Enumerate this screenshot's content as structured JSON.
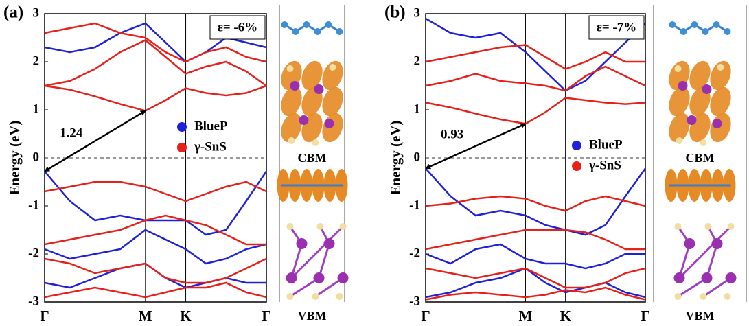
{
  "chart_data": [
    {
      "type": "line",
      "panel_label": "(a)",
      "annotation": "ε= -6%",
      "gap_label": "1.24",
      "ylabel": "Energy (eV)",
      "cbm_label": "CBM",
      "vbm_label": "VBM",
      "xlim": [
        0,
        2.2
      ],
      "ylim": [
        -3,
        3
      ],
      "yticks": [
        -3,
        -2,
        -1,
        0,
        1,
        2,
        3
      ],
      "xticks": [
        {
          "value": 0,
          "label": "Γ"
        },
        {
          "value": 1,
          "label": "M"
        },
        {
          "value": 1.4,
          "label": "K"
        },
        {
          "value": 2.2,
          "label": "Γ"
        }
      ],
      "fermi_level": 0,
      "gap_arrow": {
        "x": [
          0,
          1
        ],
        "y": [
          -0.28,
          0.98
        ]
      },
      "x": [
        0,
        0.25,
        0.5,
        0.75,
        1,
        1.2,
        1.4,
        1.6,
        1.8,
        2.0,
        2.2
      ],
      "series": [
        {
          "name": "BlueP",
          "color": "#2020d8",
          "bands": [
            [
              -0.28,
              -0.9,
              -1.3,
              -1.2,
              -1.3,
              -1.3,
              -1.3,
              -1.6,
              -1.5,
              -0.9,
              -0.28
            ],
            [
              2.3,
              2.2,
              2.3,
              2.6,
              2.8,
              2.4,
              2.0,
              2.2,
              2.5,
              2.4,
              2.3
            ],
            [
              -1.9,
              -2.1,
              -2.0,
              -1.9,
              -1.5,
              -1.7,
              -1.9,
              -2.2,
              -2.1,
              -1.9,
              -1.8
            ],
            [
              -2.6,
              -2.7,
              -2.5,
              -2.3,
              -2.2,
              -2.5,
              -2.7,
              -2.6,
              -2.5,
              -2.6,
              -2.6
            ]
          ]
        },
        {
          "name": "γ-SnS",
          "color": "#e8201a",
          "bands": [
            [
              1.5,
              1.42,
              1.28,
              1.12,
              0.98,
              1.2,
              1.45,
              1.35,
              1.3,
              1.35,
              1.5
            ],
            [
              1.5,
              1.6,
              1.85,
              2.2,
              2.45,
              2.1,
              1.75,
              1.9,
              2.0,
              1.8,
              1.5
            ],
            [
              2.6,
              2.7,
              2.8,
              2.6,
              2.5,
              2.2,
              2.0,
              2.2,
              2.3,
              2.1,
              2.0
            ],
            [
              -0.7,
              -0.6,
              -0.5,
              -0.5,
              -0.6,
              -0.75,
              -0.9,
              -0.75,
              -0.6,
              -0.5,
              -0.7
            ],
            [
              -1.8,
              -1.7,
              -1.6,
              -1.5,
              -1.3,
              -1.2,
              -1.3,
              -1.4,
              -1.6,
              -1.8,
              -1.8
            ],
            [
              -2.1,
              -2.2,
              -2.4,
              -2.3,
              -2.2,
              -2.5,
              -2.6,
              -2.6,
              -2.5,
              -2.3,
              -2.1
            ],
            [
              -2.9,
              -2.8,
              -2.7,
              -2.8,
              -2.9,
              -2.8,
              -2.7,
              -2.7,
              -2.6,
              -2.8,
              -2.9
            ]
          ]
        }
      ]
    },
    {
      "type": "line",
      "panel_label": "(b)",
      "annotation": "ε= -7%",
      "gap_label": "0.93",
      "ylabel": "Energy (eV)",
      "cbm_label": "CBM",
      "vbm_label": "VBM",
      "xlim": [
        0,
        2.2
      ],
      "ylim": [
        -3,
        3
      ],
      "yticks": [
        -3,
        -2,
        -1,
        0,
        1,
        2,
        3
      ],
      "xticks": [
        {
          "value": 0,
          "label": "Γ"
        },
        {
          "value": 1,
          "label": "M"
        },
        {
          "value": 1.4,
          "label": "K"
        },
        {
          "value": 2.2,
          "label": "Γ"
        }
      ],
      "fermi_level": 0,
      "gap_arrow": {
        "x": [
          0,
          1
        ],
        "y": [
          -0.22,
          0.71
        ]
      },
      "x": [
        0,
        0.25,
        0.5,
        0.75,
        1,
        1.2,
        1.4,
        1.6,
        1.8,
        2.0,
        2.2
      ],
      "series": [
        {
          "name": "BlueP",
          "color": "#2020d8",
          "bands": [
            [
              -0.22,
              -0.8,
              -1.2,
              -1.1,
              -1.2,
              -1.4,
              -1.5,
              -1.6,
              -1.4,
              -0.8,
              -0.22
            ],
            [
              2.9,
              2.6,
              2.5,
              2.6,
              2.2,
              1.8,
              1.4,
              1.6,
              2.0,
              2.4,
              2.8
            ],
            [
              -2.0,
              -2.2,
              -1.9,
              -1.8,
              -2.1,
              -2.2,
              -2.2,
              -2.3,
              -2.2,
              -2.0,
              -2.0
            ],
            [
              -2.9,
              -2.8,
              -2.6,
              -2.5,
              -2.3,
              -2.6,
              -2.8,
              -2.7,
              -2.6,
              -2.8,
              -2.9
            ]
          ]
        },
        {
          "name": "γ-SnS",
          "color": "#e8201a",
          "bands": [
            [
              1.15,
              1.05,
              0.92,
              0.8,
              0.71,
              0.95,
              1.25,
              1.2,
              1.15,
              1.12,
              1.15
            ],
            [
              1.5,
              1.6,
              1.75,
              1.6,
              1.55,
              1.5,
              1.4,
              1.7,
              1.9,
              1.7,
              1.5
            ],
            [
              2.0,
              2.1,
              2.2,
              2.3,
              2.35,
              2.1,
              1.85,
              2.0,
              2.2,
              2.0,
              2.0
            ],
            [
              -1.0,
              -0.95,
              -0.85,
              -0.8,
              -0.85,
              -1.0,
              -1.1,
              -0.9,
              -0.8,
              -0.9,
              -1.0
            ],
            [
              -1.9,
              -1.8,
              -1.7,
              -1.6,
              -1.5,
              -1.5,
              -1.5,
              -1.55,
              -1.7,
              -1.9,
              -1.9
            ],
            [
              -2.3,
              -2.4,
              -2.5,
              -2.4,
              -2.3,
              -2.5,
              -2.7,
              -2.7,
              -2.6,
              -2.4,
              -2.3
            ],
            [
              -2.95,
              -2.85,
              -2.8,
              -2.85,
              -2.9,
              -2.85,
              -2.75,
              -2.8,
              -2.7,
              -2.85,
              -2.95
            ]
          ]
        }
      ]
    }
  ]
}
